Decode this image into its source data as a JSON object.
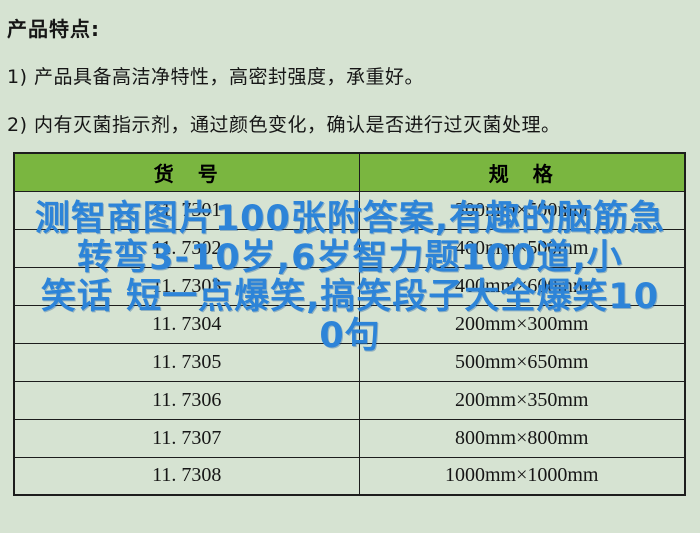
{
  "colors": {
    "background": "#d6e3d2",
    "header_green": "#7ab640",
    "overlay_blue": "#2d84d8",
    "border": "#1d1d1d",
    "text": "#161616"
  },
  "title": "产品特点:",
  "features": [
    "1) 产品具备高洁净特性，高密封强度，承重好。",
    "2) 内有灭菌指示剂，通过颜色变化，确认是否进行过灭菌处理。"
  ],
  "table": {
    "header": {
      "item_code": "货　号",
      "spec": "规　格"
    },
    "rows": [
      {
        "code": "11. 7301",
        "spec": "300mm×500mm"
      },
      {
        "code": "11. 7302",
        "spec": "400mm×500mm"
      },
      {
        "code": "11. 7303",
        "spec": "400mm×600mm"
      },
      {
        "code": "11. 7304",
        "spec": "200mm×300mm"
      },
      {
        "code": "11. 7305",
        "spec": "500mm×650mm"
      },
      {
        "code": "11. 7306",
        "spec": "200mm×350mm"
      },
      {
        "code": "11. 7307",
        "spec": "800mm×800mm"
      },
      {
        "code": "11. 7308",
        "spec": "1000mm×1000mm"
      }
    ]
  },
  "watermark": {
    "full_text": "测智商图片100张附答案,有趣的脑筋急转弯3-10岁,6岁智力题100道,小笑话 短一点爆笑,搞笑段子大全爆笑100句",
    "lines": [
      "测智商图片100张附答案,有趣的脑筋急",
      "转弯3-10岁,6岁智力题100道,小",
      "笑话 短一点爆笑,搞笑段子大全爆笑10",
      "0句"
    ]
  }
}
